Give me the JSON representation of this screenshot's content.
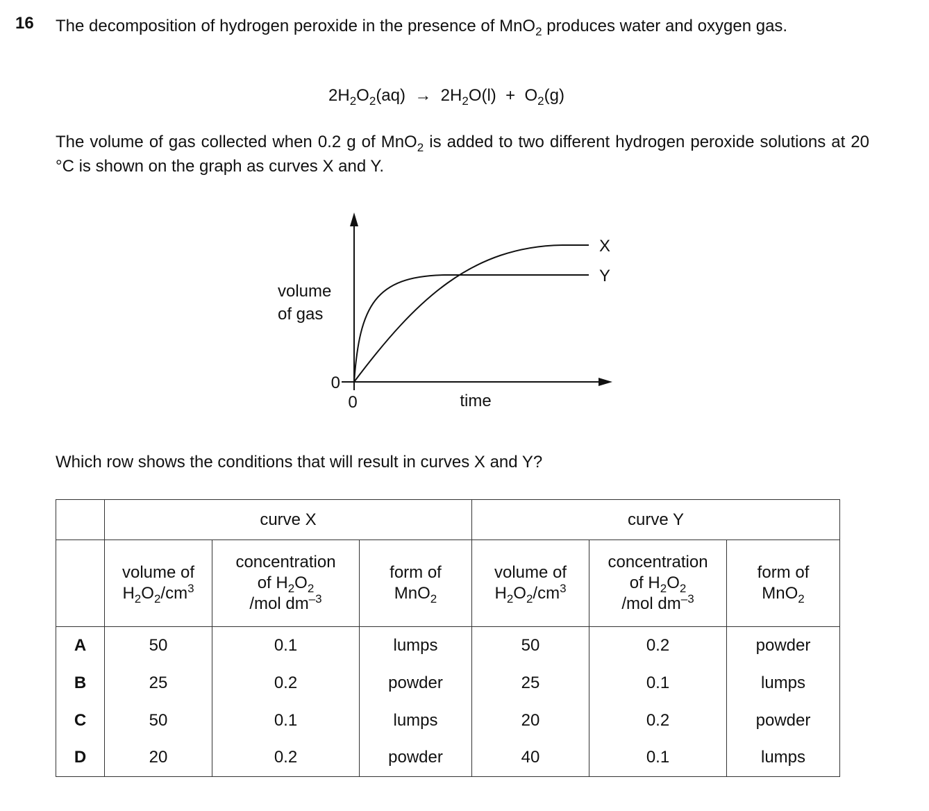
{
  "question": {
    "number": "16",
    "intro": [
      "The decomposition of hydrogen peroxide in the presence of MnO",
      {
        "sub": "2"
      },
      " produces water and oxygen gas."
    ],
    "equation": [
      "2H",
      {
        "sub": "2"
      },
      "O",
      {
        "sub": "2"
      },
      "(aq)  →  2H",
      {
        "sub": "2"
      },
      "O(l)  +  O",
      {
        "sub": "2"
      },
      "(g)"
    ],
    "context": [
      "The volume of gas collected when 0.2 g of MnO",
      {
        "sub": "2"
      },
      " is added to two different hydrogen peroxide solutions at 20 °C is shown on the graph as curves X and Y."
    ],
    "prompt": "Which row shows the conditions that will result in curves X and Y?"
  },
  "graph": {
    "y_label": [
      "volume",
      "of gas"
    ],
    "y_origin": "0",
    "x_origin": "0",
    "x_label": "time",
    "curves": [
      "X",
      "Y"
    ]
  },
  "table": {
    "groups": [
      "curve X",
      "curve Y"
    ],
    "columns": [
      [
        [
          "volume of"
        ],
        [
          "H",
          {
            "sub": "2"
          },
          "O",
          {
            "sub": "2"
          },
          "/cm",
          {
            "sup": "3"
          }
        ]
      ],
      [
        [
          "concentration"
        ],
        [
          "of H",
          {
            "sub": "2"
          },
          "O",
          {
            "sub": "2"
          }
        ],
        [
          "/mol dm",
          {
            "sup": "–3"
          }
        ]
      ],
      [
        [
          "form of"
        ],
        [
          "MnO",
          {
            "sub": "2"
          }
        ]
      ],
      [
        [
          "volume of"
        ],
        [
          "H",
          {
            "sub": "2"
          },
          "O",
          {
            "sub": "2"
          },
          "/cm",
          {
            "sup": "3"
          }
        ]
      ],
      [
        [
          "concentration"
        ],
        [
          "of H",
          {
            "sub": "2"
          },
          "O",
          {
            "sub": "2"
          }
        ],
        [
          "/mol dm",
          {
            "sup": "–3"
          }
        ]
      ],
      [
        [
          "form of"
        ],
        [
          "MnO",
          {
            "sub": "2"
          }
        ]
      ]
    ],
    "rows": [
      [
        "A",
        "50",
        "0.1",
        "lumps",
        "50",
        "0.2",
        "powder"
      ],
      [
        "B",
        "25",
        "0.2",
        "powder",
        "25",
        "0.1",
        "lumps"
      ],
      [
        "C",
        "50",
        "0.1",
        "lumps",
        "20",
        "0.2",
        "powder"
      ],
      [
        "D",
        "20",
        "0.2",
        "powder",
        "40",
        "0.1",
        "lumps"
      ]
    ]
  }
}
